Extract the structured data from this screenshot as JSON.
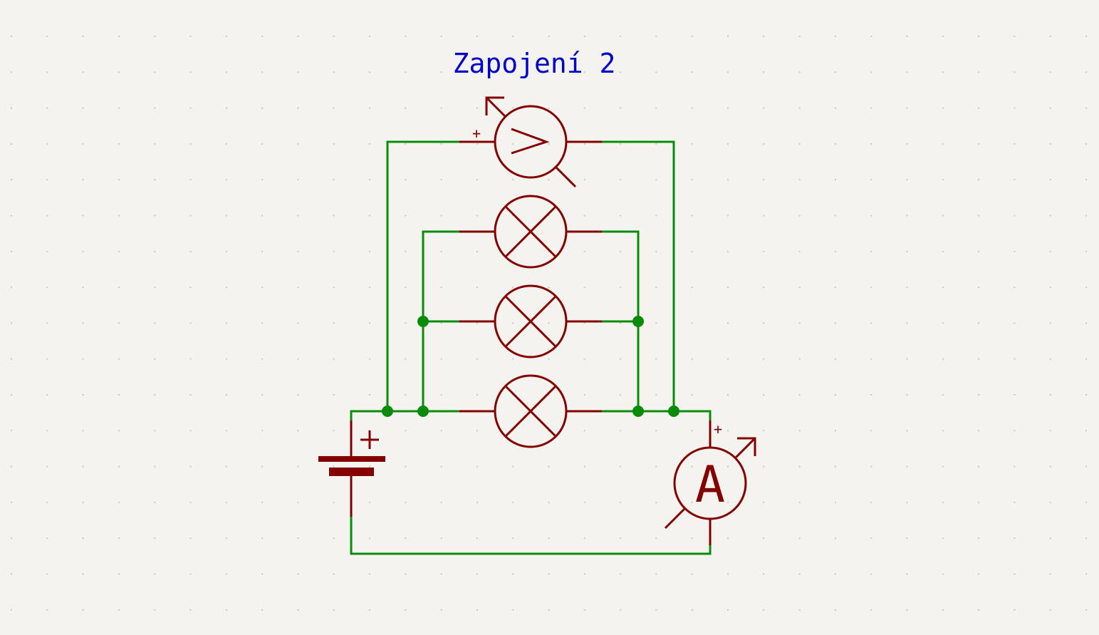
{
  "title": "Zapojení 2",
  "voltmeter": {
    "label": "V",
    "polarity": "+"
  },
  "ammeter": {
    "label": "A",
    "polarity": "+"
  },
  "battery": {
    "polarity": "+"
  },
  "lamps": [
    {
      "name": "lamp-1"
    },
    {
      "name": "lamp-2"
    },
    {
      "name": "lamp-3"
    }
  ],
  "colors": {
    "background": "#f4f3ef",
    "wire": "#0a8c0a",
    "symbol": "#840000",
    "title": "#0000c8",
    "grid_dot": "#c9c8c3"
  }
}
